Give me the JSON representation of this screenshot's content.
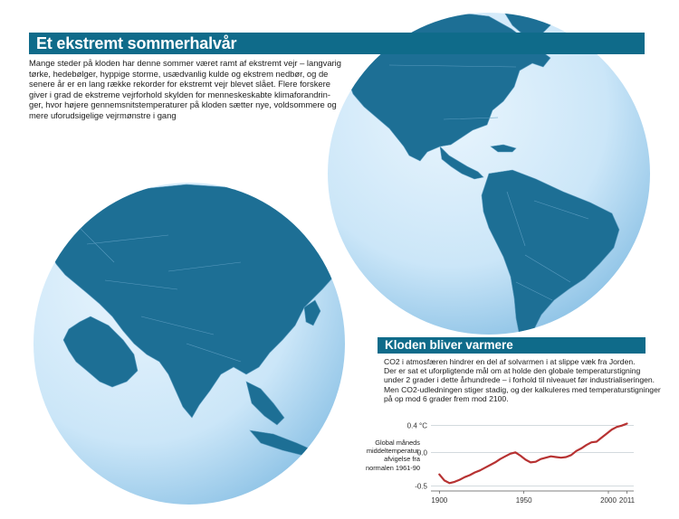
{
  "title": "Et ekstremt sommerhalvår",
  "intro_lines": [
    "Mange steder på kloden har denne sommer været ramt af ekstremt vejr – langvarig",
    "tørke, hedebølger, hyppige storme, usædvanlig kulde og ekstrem nedbør, og de",
    "senere år er en lang række rekorder for ekstremt vejr blevet slået. Flere forskere",
    "giver i grad de ekstreme vejrforhold skylden for menneskeskabte klimaforandrin-",
    "ger, hvor højere gennemsnitstemperaturer på kloden sætter nye, voldsommere og",
    "mere uforudsigelige vejrmønstre i gang"
  ],
  "subtitle": "Kloden bliver varmere",
  "info_lines": [
    "CO2 i atmosfæren hindrer en del af solvarmen i at slippe væk fra Jorden.",
    "Der er sat et uforpligtende mål om at holde den globale temperaturstigning",
    "under 2 grader i dette århundrede – i forhold til niveauet før industrialiseringen.",
    "Men CO2-udledningen stiger stadig, og der kalkuleres med temperaturstigninger",
    "på op mod 6 grader frem mod 2100."
  ],
  "globes": {
    "right": {
      "depicts": "americas",
      "land_color": "#1d6f95",
      "ocean_light": "#e9f5fd",
      "ocean_dark": "#8ec3e6"
    },
    "left": {
      "depicts": "eurasia-africa",
      "land_color": "#1d6f95",
      "ocean_light": "#e9f5fd",
      "ocean_dark": "#8ec3e6"
    }
  },
  "colors": {
    "accent": "#0f6b8a",
    "line": "#b73232"
  },
  "chart_data": {
    "type": "line",
    "ylabel_lines": [
      "Global måneds",
      "middeltemperatur,",
      "afvigelse fra",
      "normalen 1961-90"
    ],
    "y_ticks": [
      {
        "value": 0.4,
        "label": "0.4 °C"
      },
      {
        "value": 0.0,
        "label": "0.0"
      },
      {
        "value": -0.5,
        "label": "-0.5"
      }
    ],
    "x_ticks": [
      {
        "value": 1900,
        "label": "1900"
      },
      {
        "value": 1950,
        "label": "1950"
      },
      {
        "value": 2000,
        "label": "2000"
      },
      {
        "value": 2011,
        "label": "2011"
      }
    ],
    "xlim": [
      1895,
      2015
    ],
    "ylim": [
      -0.55,
      0.45
    ],
    "x": [
      1900,
      1903,
      1906,
      1909,
      1912,
      1915,
      1918,
      1921,
      1924,
      1927,
      1930,
      1933,
      1936,
      1939,
      1942,
      1945,
      1948,
      1951,
      1954,
      1957,
      1960,
      1963,
      1966,
      1969,
      1972,
      1975,
      1978,
      1981,
      1984,
      1987,
      1990,
      1993,
      1996,
      1999,
      2002,
      2005,
      2008,
      2011
    ],
    "values": [
      -0.33,
      -0.42,
      -0.46,
      -0.44,
      -0.41,
      -0.37,
      -0.34,
      -0.3,
      -0.27,
      -0.23,
      -0.19,
      -0.15,
      -0.1,
      -0.06,
      -0.02,
      0.0,
      -0.05,
      -0.11,
      -0.15,
      -0.14,
      -0.1,
      -0.08,
      -0.06,
      -0.07,
      -0.08,
      -0.07,
      -0.04,
      0.02,
      0.06,
      0.11,
      0.15,
      0.16,
      0.22,
      0.28,
      0.34,
      0.38,
      0.4,
      0.43
    ]
  }
}
